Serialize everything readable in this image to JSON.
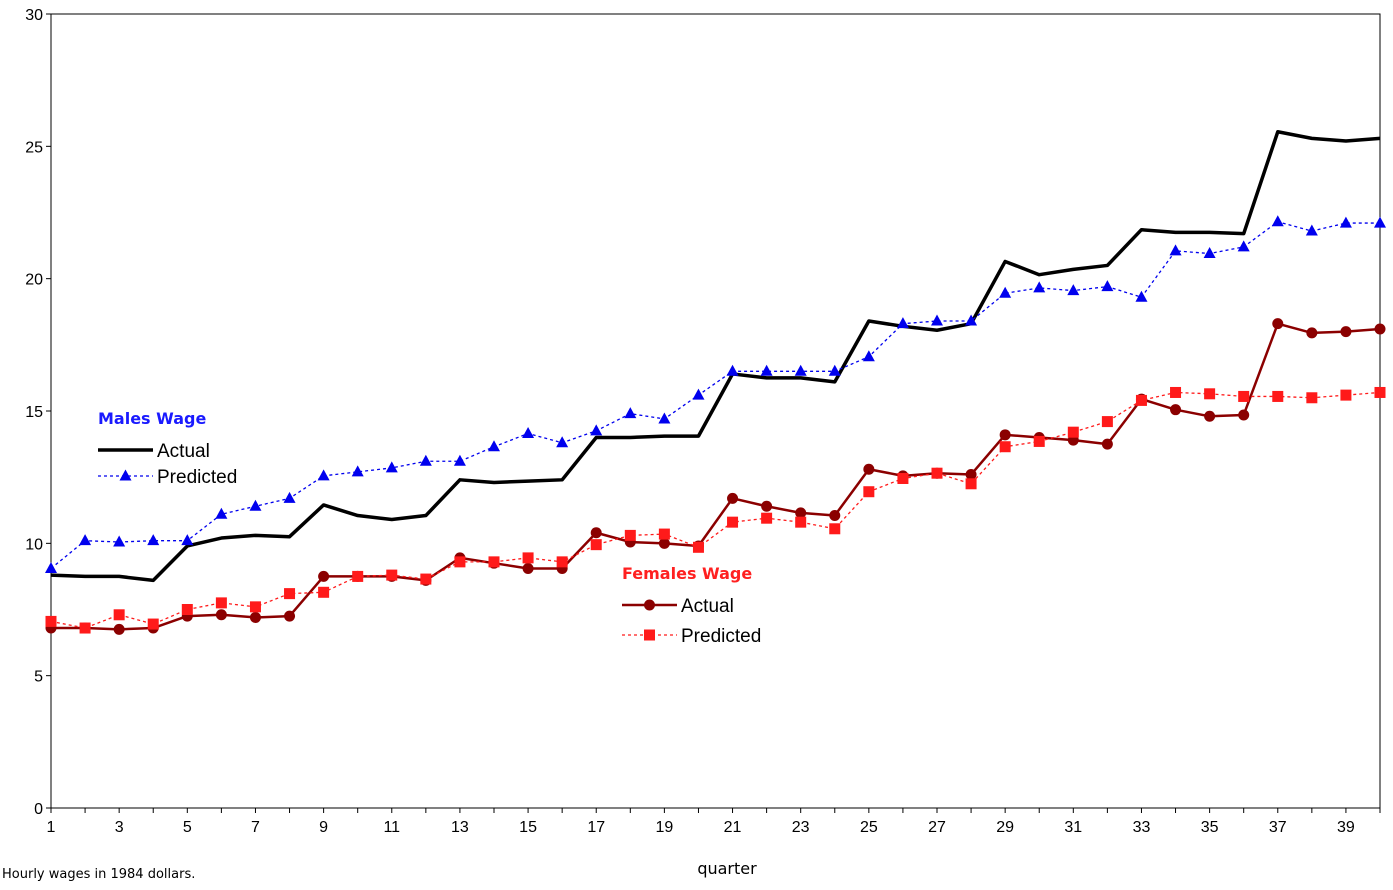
{
  "chart_data": {
    "type": "line",
    "xlabel": "quarter",
    "note": "Hourly wages in 1984 dollars.",
    "x": [
      1,
      2,
      3,
      4,
      5,
      6,
      7,
      8,
      9,
      10,
      11,
      12,
      13,
      14,
      15,
      16,
      17,
      18,
      19,
      20,
      21,
      22,
      23,
      24,
      25,
      26,
      27,
      28,
      29,
      30,
      31,
      32,
      33,
      34,
      35,
      36,
      37,
      38,
      39,
      40
    ],
    "xlim": [
      1,
      40
    ],
    "ylim": [
      0,
      30
    ],
    "y_ticks": [
      0,
      5,
      10,
      15,
      20,
      25,
      30
    ],
    "x_ticks": [
      1,
      3,
      5,
      7,
      9,
      11,
      13,
      15,
      17,
      19,
      21,
      23,
      25,
      27,
      29,
      31,
      33,
      35,
      37,
      39
    ],
    "groups": [
      {
        "title": "Males Wage",
        "title_color": "#1a1aff"
      },
      {
        "title": "Females Wage",
        "title_color": "#ff2020"
      }
    ],
    "series": [
      {
        "name": "Actual",
        "group": 0,
        "color": "#000000",
        "style": "solid",
        "marker": "none",
        "values": [
          8.8,
          8.75,
          8.75,
          8.6,
          9.9,
          10.2,
          10.3,
          10.25,
          11.45,
          11.05,
          10.9,
          11.05,
          12.4,
          12.3,
          12.35,
          12.4,
          14.0,
          14.0,
          14.05,
          14.05,
          16.4,
          16.25,
          16.25,
          16.1,
          18.4,
          18.2,
          18.05,
          18.3,
          20.65,
          20.15,
          20.35,
          20.5,
          21.85,
          21.75,
          21.75,
          21.7,
          25.55,
          25.3,
          25.2,
          25.3
        ]
      },
      {
        "name": "Predicted",
        "group": 0,
        "color": "#0000ee",
        "style": "dotted",
        "marker": "triangle",
        "values": [
          9.05,
          10.1,
          10.05,
          10.1,
          10.1,
          11.1,
          11.4,
          11.7,
          12.55,
          12.7,
          12.85,
          13.1,
          13.1,
          13.65,
          14.15,
          13.8,
          14.25,
          14.9,
          14.7,
          15.6,
          16.5,
          16.5,
          16.5,
          16.5,
          17.05,
          18.3,
          18.4,
          18.4,
          19.45,
          19.65,
          19.55,
          19.7,
          19.3,
          21.05,
          20.95,
          21.2,
          22.15,
          21.8,
          22.1,
          22.1
        ]
      },
      {
        "name": "Actual",
        "group": 1,
        "color": "#8b0000",
        "style": "solid",
        "marker": "circle",
        "values": [
          6.8,
          6.8,
          6.75,
          6.8,
          7.25,
          7.3,
          7.2,
          7.25,
          8.75,
          8.75,
          8.75,
          8.6,
          9.45,
          9.25,
          9.05,
          9.05,
          10.4,
          10.05,
          10.0,
          9.9,
          11.7,
          11.4,
          11.15,
          11.05,
          12.8,
          12.55,
          12.65,
          12.6,
          14.1,
          14.0,
          13.9,
          13.75,
          15.45,
          15.05,
          14.8,
          14.85,
          18.3,
          17.95,
          18.0,
          18.1
        ]
      },
      {
        "name": "Predicted",
        "group": 1,
        "color": "#ff1a1a",
        "style": "dotted",
        "marker": "square",
        "values": [
          7.05,
          6.8,
          7.3,
          6.95,
          7.5,
          7.75,
          7.6,
          8.1,
          8.15,
          8.75,
          8.8,
          8.65,
          9.3,
          9.3,
          9.45,
          9.3,
          9.95,
          10.3,
          10.35,
          9.85,
          10.8,
          10.95,
          10.8,
          10.55,
          11.95,
          12.45,
          12.65,
          12.25,
          13.65,
          13.85,
          14.2,
          14.6,
          15.4,
          15.7,
          15.65,
          15.55,
          15.55,
          15.5,
          15.6,
          15.7
        ]
      }
    ]
  }
}
